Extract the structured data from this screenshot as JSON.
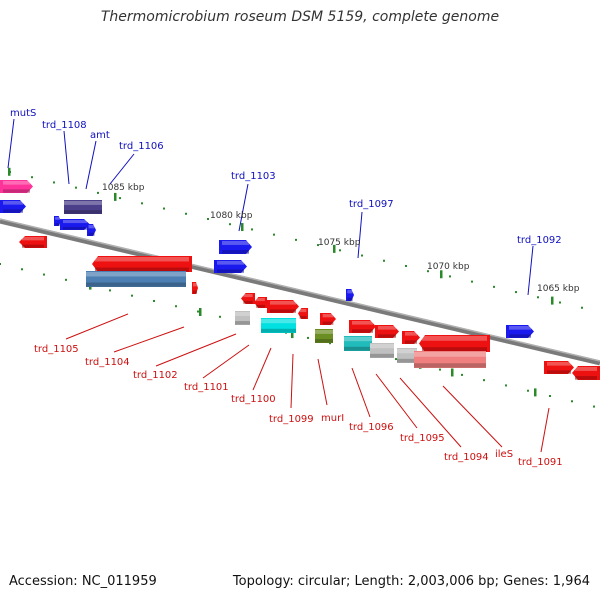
{
  "title": "Thermomicrobium roseum DSM 5159, complete genome",
  "accession": "Accession: NC_011959",
  "summary": "Topology: circular; Length: 2,003,006 bp; Genes: 1,964",
  "scale_labels": [
    "1085 kbp",
    "1080 kbp",
    "1075 kbp",
    "1070 kbp",
    "1065 kbp"
  ],
  "top_gene_labels": [
    "mutS",
    "trd_1108",
    "amt",
    "trd_1106",
    "trd_1103",
    "trd_1097",
    "trd_1092"
  ],
  "bottom_gene_labels": [
    "trd_1105",
    "trd_1104",
    "trd_1102",
    "trd_1101",
    "trd_1100",
    "trd_1099",
    "murI",
    "trd_1096",
    "trd_1095",
    "trd_1094",
    "ileS",
    "trd_1091"
  ],
  "colors": {
    "forward_label": "#1010c0",
    "reverse_label": "#cc1010",
    "backbone": "#777777",
    "tick": "#2a8a2a",
    "blue_gene": "#1a1aee",
    "red_gene": "#ee1111",
    "pink_gene": "#ff3399",
    "steelblue_gene": "#4d7fb3",
    "cyan_gene": "#00e0e0",
    "teal_gene": "#22bbbb",
    "olive_gene": "#6b8e23",
    "grey_gene": "#c0c0c0",
    "salmon_gene": "#f08080",
    "slate_gene": "#4b3f8a"
  }
}
